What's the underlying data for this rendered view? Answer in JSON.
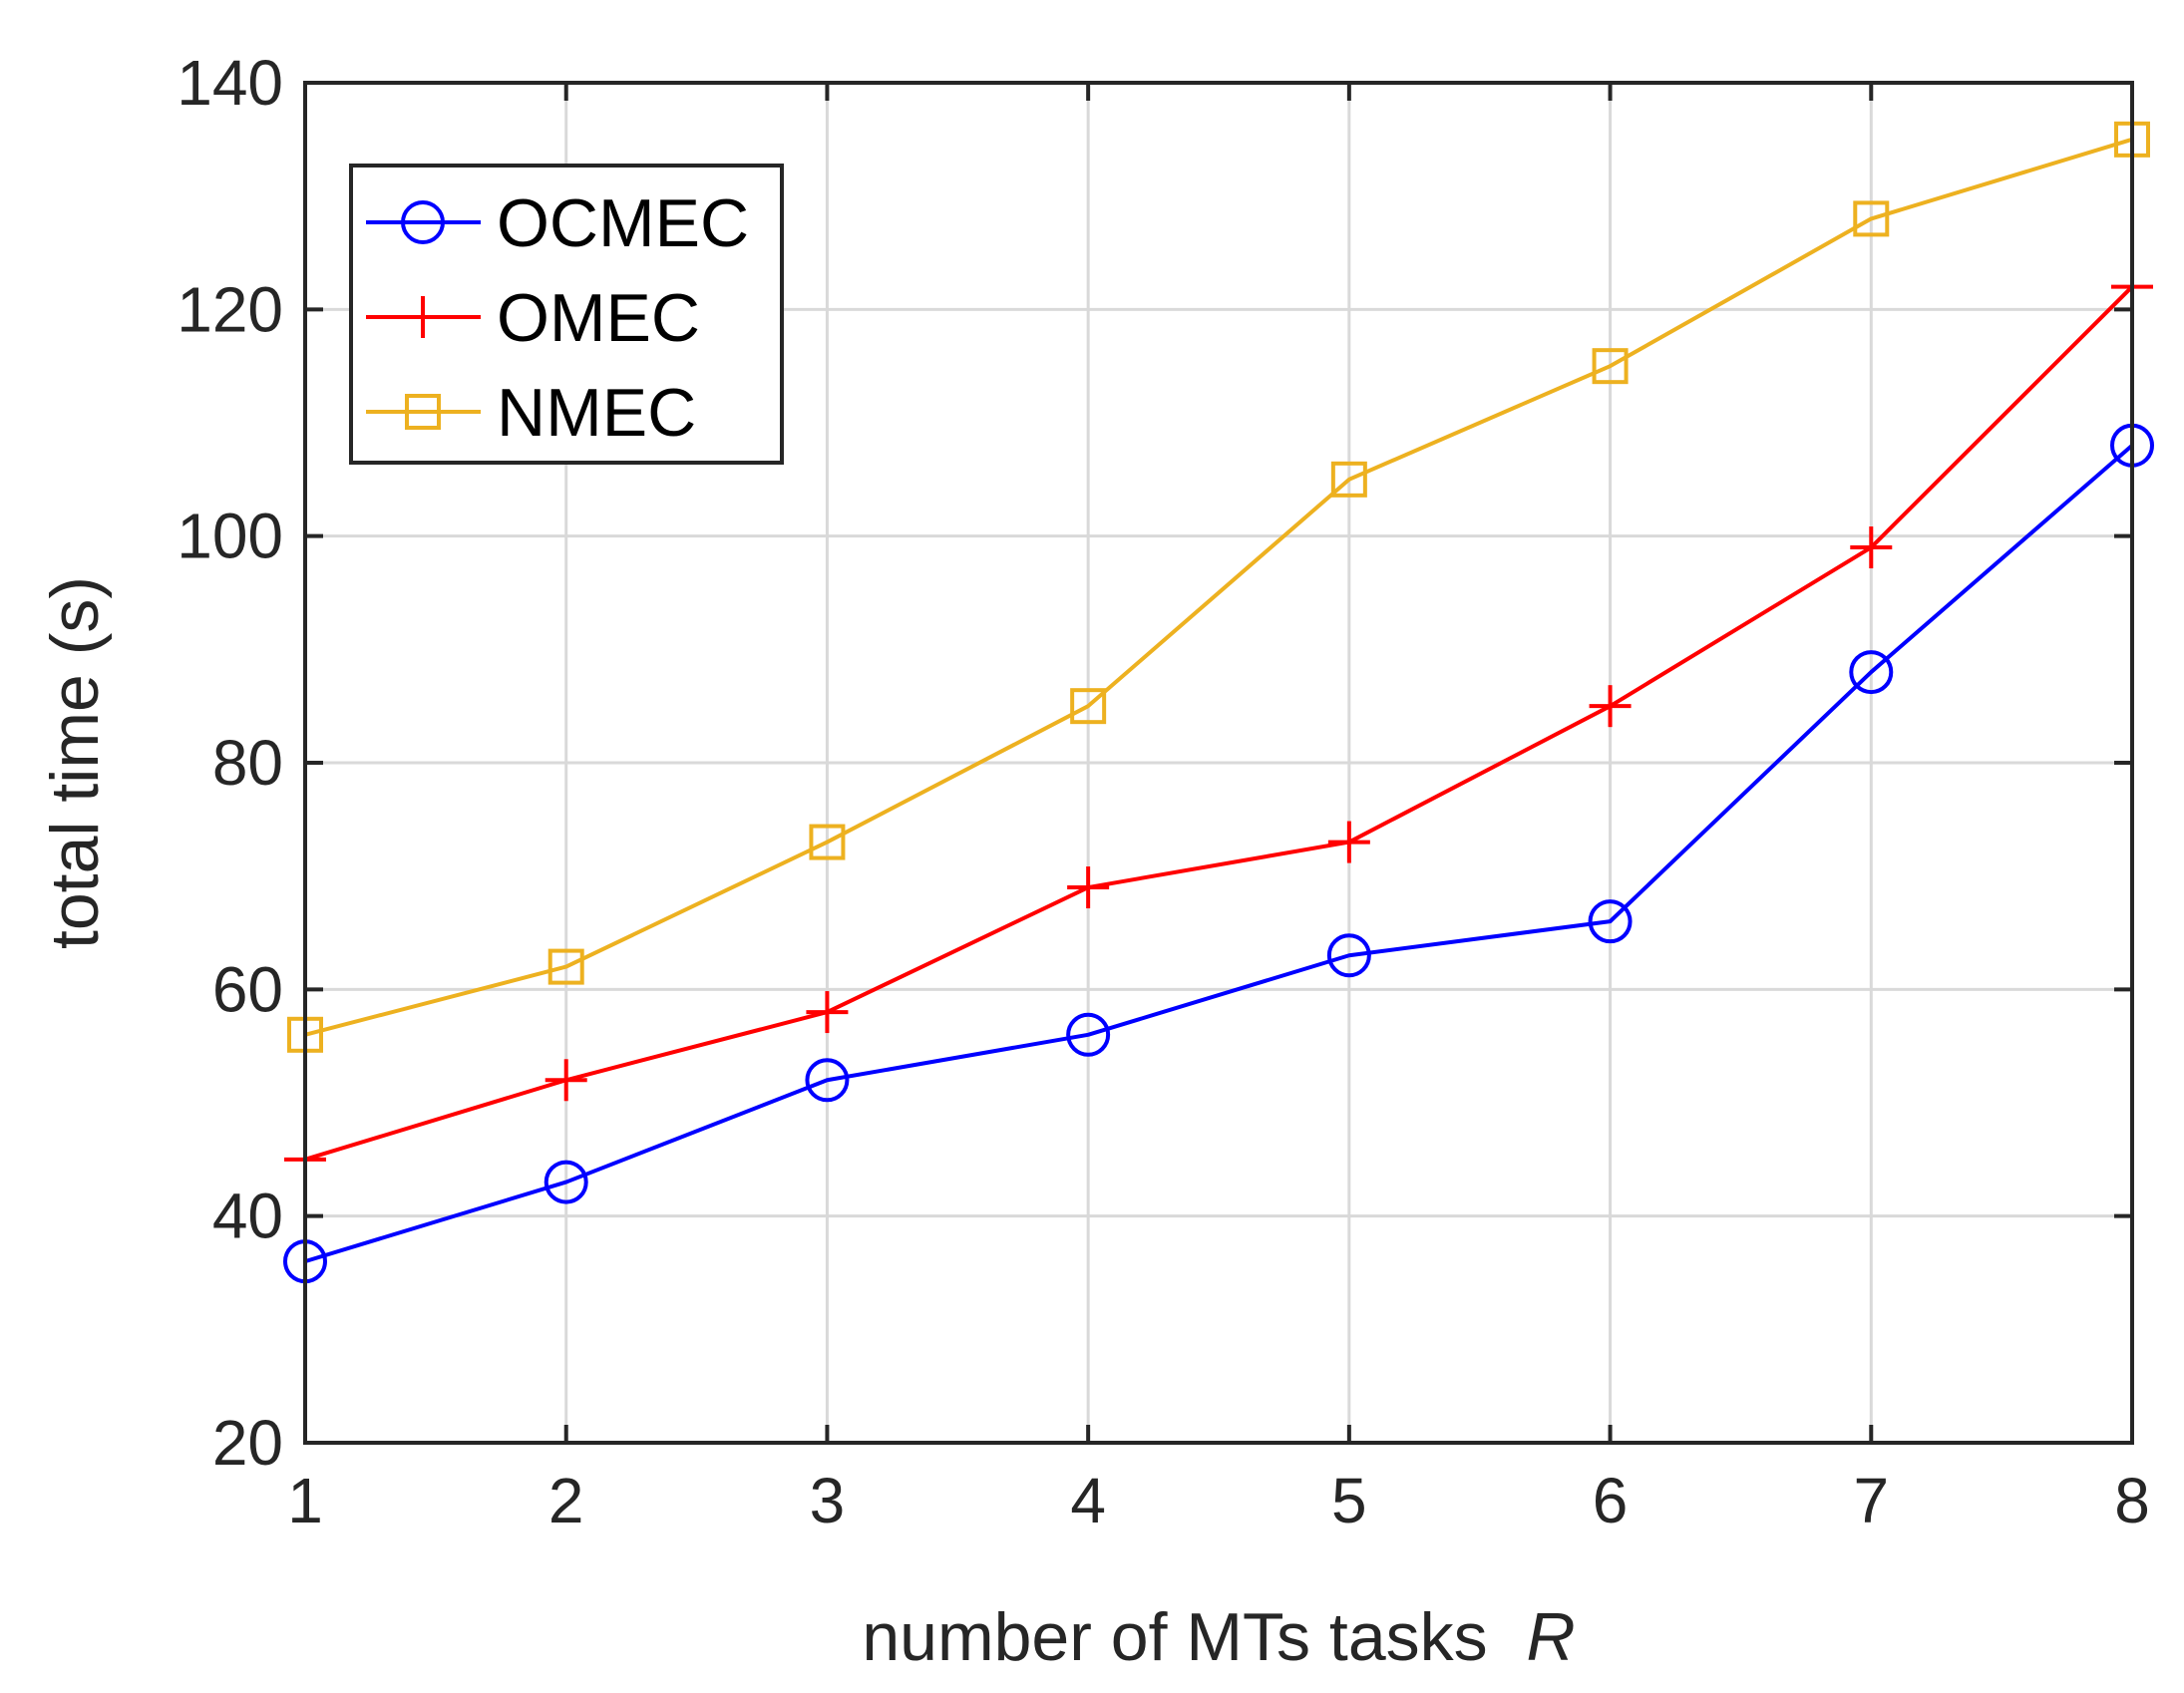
{
  "chart_data": {
    "type": "line",
    "title": "",
    "xlabel": "number of MTs tasks",
    "xlabel_symbol": "R",
    "ylabel": "total time (s)",
    "x": [
      1,
      2,
      3,
      4,
      5,
      6,
      7,
      8
    ],
    "xlim": [
      1,
      8
    ],
    "ylim": [
      20,
      140
    ],
    "xticks": [
      1,
      2,
      3,
      4,
      5,
      6,
      7,
      8
    ],
    "yticks": [
      20,
      40,
      60,
      80,
      100,
      120,
      140
    ],
    "grid": true,
    "legend_position": "top-left",
    "series": [
      {
        "name": "OCMEC",
        "color": "#0000ff",
        "marker": "circle",
        "values": [
          36,
          43,
          52,
          56,
          63,
          66,
          88,
          108
        ]
      },
      {
        "name": "OMEC",
        "color": "#ff0000",
        "marker": "plus",
        "values": [
          45,
          52,
          58,
          69,
          73,
          85,
          99,
          122
        ]
      },
      {
        "name": "NMEC",
        "color": "#edb120",
        "marker": "square",
        "values": [
          56,
          62,
          73,
          85,
          105,
          115,
          128,
          135
        ]
      }
    ]
  }
}
